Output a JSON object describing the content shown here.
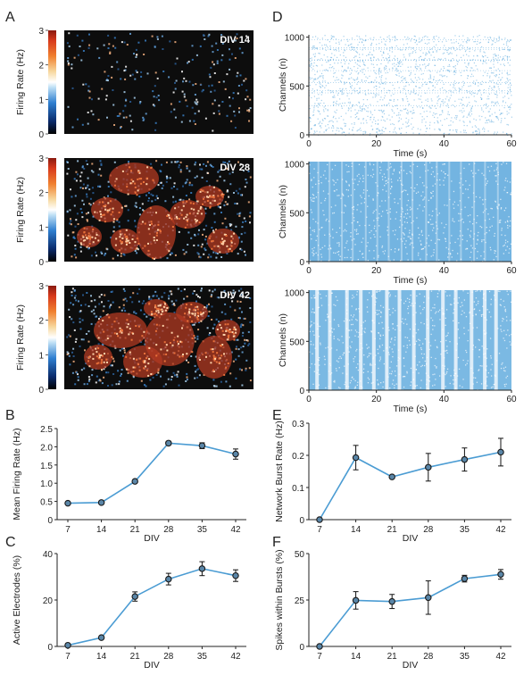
{
  "panel_labels": {
    "A": "A",
    "B": "B",
    "C": "C",
    "D": "D",
    "E": "E",
    "F": "F"
  },
  "colors": {
    "line": "#4b9cd3",
    "marker_fill": "#5a86a8",
    "marker_edge": "#1a1a1a",
    "raster": "#5aa7dc",
    "map_bg": "#0d0d0d"
  },
  "chart_data": [
    {
      "panel": "A",
      "type": "heatmap",
      "ylabel": "Firing Rate (Hz)",
      "colorbar_ticks": [
        "0",
        "1",
        "2",
        "3"
      ],
      "colorbar_range": [
        0,
        3
      ],
      "maps": [
        {
          "label": "DIV 14",
          "activity": "low"
        },
        {
          "label": "DIV 28",
          "activity": "high"
        },
        {
          "label": "DIV 42",
          "activity": "high-clustered"
        }
      ]
    },
    {
      "panel": "D",
      "type": "scatter",
      "xlabel": "Time (s)",
      "ylabel": "Channels (n)",
      "xlim": [
        0,
        60
      ],
      "ylim": [
        0,
        1024
      ],
      "xticks": [
        "0",
        "20",
        "40",
        "60"
      ],
      "yticks": [
        "0",
        "500",
        "1000"
      ],
      "rasters": [
        {
          "condition": "DIV 14",
          "density": "sparse"
        },
        {
          "condition": "DIV 28",
          "density": "dense"
        },
        {
          "condition": "DIV 42",
          "density": "dense-synchronized-bursts"
        }
      ]
    },
    {
      "panel": "B",
      "type": "line",
      "xlabel": "DIV",
      "ylabel": "Mean Firing Rate (Hz)",
      "categories": [
        "7",
        "14",
        "21",
        "28",
        "35",
        "42"
      ],
      "values": [
        0.45,
        0.47,
        1.05,
        2.1,
        2.03,
        1.8
      ],
      "errors": [
        0.03,
        0.03,
        0.04,
        0.05,
        0.08,
        0.14
      ],
      "ylim": [
        0,
        2.5
      ],
      "yticks": [
        "0",
        "0.5",
        "1.0",
        "1.5",
        "2.0",
        "2.5"
      ]
    },
    {
      "panel": "E",
      "type": "line",
      "xlabel": "DIV",
      "ylabel": "Network Burst Rate (Hz)",
      "categories": [
        "7",
        "14",
        "21",
        "28",
        "35",
        "42"
      ],
      "values": [
        0.0,
        0.193,
        0.133,
        0.163,
        0.187,
        0.21
      ],
      "errors": [
        0.0,
        0.038,
        0.004,
        0.043,
        0.036,
        0.043
      ],
      "ylim": [
        0,
        0.3
      ],
      "yticks": [
        "0",
        "0.1",
        "0.2",
        "0.3"
      ]
    },
    {
      "panel": "C",
      "type": "line",
      "xlabel": "DIV",
      "ylabel": "Active Electrodes (%)",
      "categories": [
        "7",
        "14",
        "21",
        "28",
        "35",
        "42"
      ],
      "values": [
        0.5,
        3.8,
        21.5,
        29,
        33.5,
        30.5
      ],
      "errors": [
        0.3,
        0.6,
        2.0,
        2.5,
        3.0,
        2.5
      ],
      "ylim": [
        0,
        40
      ],
      "yticks": [
        "0",
        "20",
        "40"
      ]
    },
    {
      "panel": "F",
      "type": "line",
      "xlabel": "DIV",
      "ylabel": "Spikes within Bursts (%)",
      "categories": [
        "7",
        "14",
        "21",
        "28",
        "35",
        "42"
      ],
      "values": [
        0,
        24.8,
        24.2,
        26.3,
        36.5,
        38.8
      ],
      "errors": [
        0,
        4.7,
        3.8,
        9.0,
        1.8,
        2.6
      ],
      "ylim": [
        0,
        50
      ],
      "yticks": [
        "0",
        "25",
        "50"
      ]
    }
  ]
}
